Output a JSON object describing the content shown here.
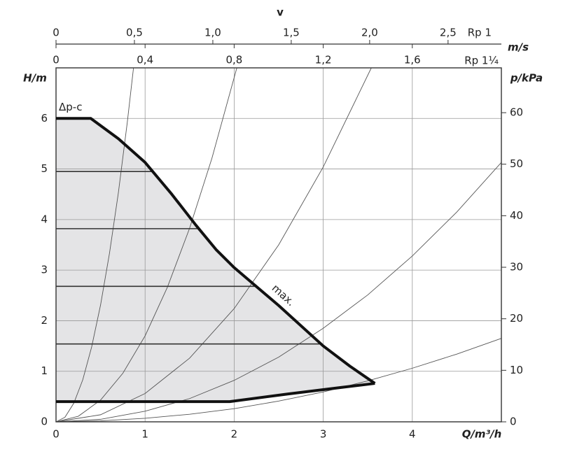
{
  "chart_data": {
    "type": "line",
    "xlabel": "Q/m³/h",
    "ylabel": "H/m",
    "y2label": "p/kPa",
    "xlim": [
      0,
      5
    ],
    "xticks": [
      0,
      1,
      2,
      3,
      4
    ],
    "ylim": [
      0,
      7
    ],
    "yticks": [
      0,
      1,
      2,
      3,
      4,
      5,
      6
    ],
    "y2lim": [
      0,
      68.7
    ],
    "y2ticks": [
      0,
      10,
      20,
      30,
      40,
      50,
      60
    ],
    "grid": true,
    "top_axes": {
      "title": "v",
      "unit": "m/s",
      "rp1": {
        "name": "Rp 1",
        "xlim": [
          0,
          2.84
        ],
        "xticks": [
          0,
          {
            "value": 0.5,
            "label": "0,5"
          },
          {
            "value": 1.0,
            "label": "1,0"
          },
          {
            "value": 1.5,
            "label": "1,5"
          },
          {
            "value": 2.0,
            "label": "2,0"
          },
          {
            "value": 2.5,
            "label": "2,5"
          }
        ]
      },
      "rp114": {
        "name": "Rp 1¼",
        "xlim": [
          0,
          2.0
        ],
        "xticks": [
          0,
          {
            "value": 0.4,
            "label": "0,4"
          },
          {
            "value": 0.8,
            "label": "0,8"
          },
          {
            "value": 1.2,
            "label": "1,2"
          },
          {
            "value": 1.6,
            "label": "1,6"
          }
        ]
      }
    },
    "annotations": {
      "max": "max.",
      "dpc": "Δp-c"
    },
    "max_curve": {
      "x": [
        0,
        0.39,
        0.7,
        1.0,
        1.3,
        1.57,
        1.8,
        2.0,
        2.5,
        3.0,
        3.3,
        3.58
      ],
      "values": [
        6,
        6,
        5.6,
        5.13,
        4.5,
        3.89,
        3.4,
        3.05,
        2.3,
        1.5,
        1.1,
        0.76
      ]
    },
    "min_curve": {
      "x": [
        0,
        1.95,
        2.6,
        3.2,
        3.58
      ],
      "values": [
        0.4,
        0.4,
        0.55,
        0.68,
        0.76
      ]
    },
    "dpc_levels": [
      4.95,
      3.82,
      2.68,
      1.54
    ],
    "system_curves": [
      {
        "x": [
          0,
          0.1,
          0.2,
          0.3,
          0.4,
          0.5,
          0.6,
          0.7,
          0.8,
          0.87
        ],
        "values": [
          0,
          0.09,
          0.37,
          0.83,
          1.48,
          2.31,
          3.33,
          4.53,
          5.92,
          7.0
        ]
      },
      {
        "x": [
          0,
          0.25,
          0.5,
          0.75,
          1,
          1.25,
          1.5,
          1.75,
          2.03
        ],
        "values": [
          0,
          0.11,
          0.43,
          0.96,
          1.7,
          2.66,
          3.83,
          5.21,
          7.0
        ]
      },
      {
        "x": [
          0,
          0.5,
          1,
          1.5,
          2,
          2.5,
          3,
          3.54
        ],
        "values": [
          0,
          0.14,
          0.56,
          1.26,
          2.24,
          3.5,
          5.04,
          7.0
        ]
      },
      {
        "x": [
          0,
          0.5,
          1,
          1.5,
          2,
          2.5,
          3,
          3.5,
          4,
          4.5,
          5
        ],
        "values": [
          0,
          0.05,
          0.21,
          0.46,
          0.82,
          1.28,
          1.85,
          2.51,
          3.28,
          4.15,
          5.13
        ]
      },
      {
        "x": [
          0,
          0.5,
          1,
          1.5,
          2,
          2.5,
          3,
          3.5,
          4,
          4.5,
          5
        ],
        "values": [
          0,
          0.02,
          0.07,
          0.15,
          0.26,
          0.41,
          0.59,
          0.81,
          1.06,
          1.34,
          1.65
        ]
      }
    ]
  }
}
